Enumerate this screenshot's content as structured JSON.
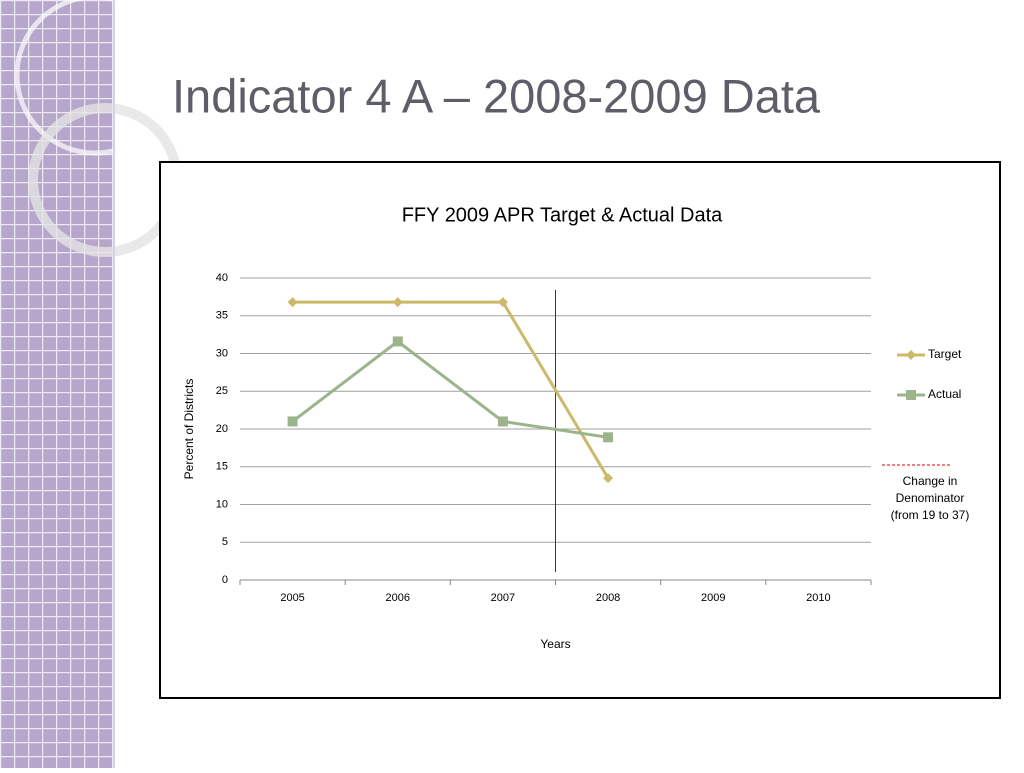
{
  "slide": {
    "title": "Indicator 4 A – 2008-2009 Data"
  },
  "chart_data": {
    "type": "line",
    "title": "FFY 2009 APR Target & Actual Data",
    "x_label": "Years",
    "y_label": "Percent of Districts",
    "categories": [
      "2005",
      "2006",
      "2007",
      "2008",
      "2009",
      "2010"
    ],
    "series": [
      {
        "name": "Target",
        "color": "#cdb96a",
        "marker": "diamond",
        "values": [
          36.8,
          36.8,
          36.8,
          13.5,
          null,
          null
        ]
      },
      {
        "name": "Actual",
        "color": "#9bb48a",
        "marker": "square",
        "values": [
          21,
          31.6,
          21,
          18.9,
          null,
          null
        ]
      }
    ],
    "ylim": [
      0,
      40
    ],
    "yticks": [
      0,
      5,
      10,
      15,
      20,
      25,
      30,
      35,
      40
    ],
    "grid": true,
    "legend": "right",
    "annotation": [
      "Change in",
      "Denominator",
      "(from 19  to 37)"
    ]
  }
}
